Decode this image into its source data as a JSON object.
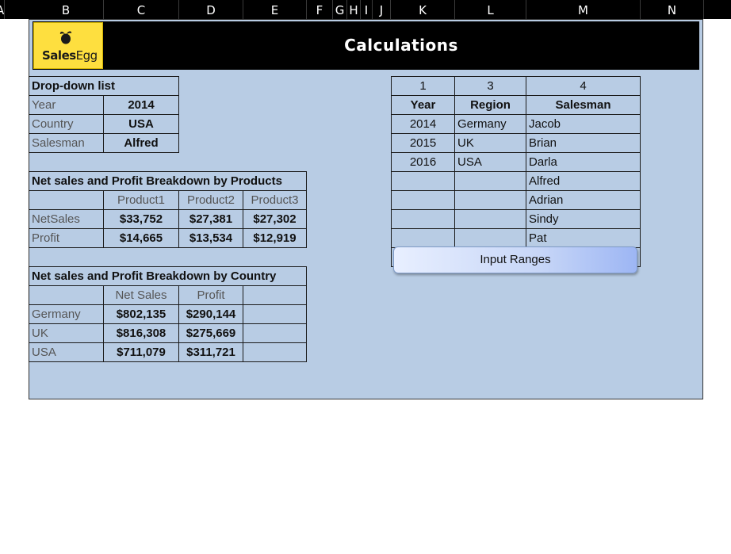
{
  "columns": [
    "A",
    "B",
    "C",
    "D",
    "E",
    "F",
    "G",
    "H",
    "I",
    "J",
    "K",
    "L",
    "M",
    "N"
  ],
  "banner": {
    "title": "Calculations",
    "logo_text_bold": "Sales",
    "logo_text_rest": "Egg"
  },
  "dropdown": {
    "header": "Drop-down list",
    "rows": [
      {
        "label": "Year",
        "value": "2014"
      },
      {
        "label": "Country",
        "value": "USA"
      },
      {
        "label": "Salesman",
        "value": "Alfred"
      }
    ]
  },
  "products": {
    "header": "Net sales and Profit Breakdown by Products",
    "columns": [
      "Product1",
      "Product2",
      "Product3"
    ],
    "rows": [
      {
        "label": "NetSales",
        "values": [
          "$33,752",
          "$27,381",
          "$27,302"
        ]
      },
      {
        "label": "Profit",
        "values": [
          "$14,665",
          "$13,534",
          "$12,919"
        ]
      }
    ]
  },
  "country": {
    "header": "Net sales and Profit Breakdown by Country",
    "columns": [
      "Net Sales",
      "Profit"
    ],
    "rows": [
      {
        "label": "Germany",
        "values": [
          "$802,135",
          "$290,144"
        ]
      },
      {
        "label": "UK",
        "values": [
          "$816,308",
          "$275,669"
        ]
      },
      {
        "label": "USA",
        "values": [
          "$711,079",
          "$311,721"
        ]
      }
    ]
  },
  "ranges": {
    "counts": [
      "1",
      "3",
      "4"
    ],
    "headers": [
      "Year",
      "Region",
      "Salesman"
    ],
    "rows": [
      [
        "2014",
        "Germany",
        "Jacob"
      ],
      [
        "2015",
        "UK",
        "Brian"
      ],
      [
        "2016",
        "USA",
        "Darla"
      ],
      [
        "",
        "",
        "Alfred"
      ],
      [
        "",
        "",
        "Adrian"
      ],
      [
        "",
        "",
        "Sindy"
      ],
      [
        "",
        "",
        "Pat"
      ]
    ]
  },
  "button": {
    "label": "Input Ranges"
  }
}
